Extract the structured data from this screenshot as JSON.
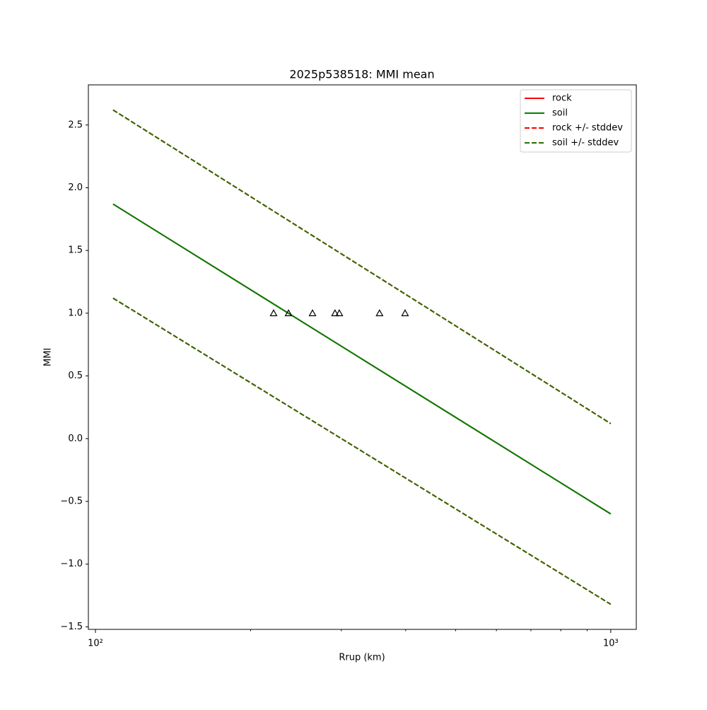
{
  "chart_data": {
    "type": "line",
    "title": "2025p538518: MMI mean",
    "x_label": "Rrup (km)",
    "y_label": "MMI",
    "x_scale": "log",
    "x": [
      108.2,
      1000
    ],
    "series": [
      {
        "name": "rock",
        "color": "#ff0000",
        "style": "solid",
        "values": [
          1.87,
          -0.6
        ]
      },
      {
        "name": "soil",
        "color": "#008000",
        "style": "solid",
        "values": [
          1.87,
          -0.6
        ]
      },
      {
        "name": "rock +/- stddev",
        "color": "#ff0000",
        "style": "dashed",
        "upper": [
          2.62,
          0.12
        ],
        "lower": [
          1.12,
          -1.32
        ]
      },
      {
        "name": "soil +/- stddev",
        "color": "#2e6b00",
        "style": "dashed",
        "upper": [
          2.62,
          0.12
        ],
        "lower": [
          1.12,
          -1.32
        ]
      }
    ],
    "markers": {
      "color": "#000000",
      "x": [
        221.7,
        237,
        263.8,
        291.7,
        297.4,
        355.9,
        398.9
      ],
      "values": [
        1,
        1,
        1,
        1,
        1,
        1,
        1
      ]
    },
    "xlim": [
      96.9,
      1121
    ],
    "ylim": [
      -1.52,
      2.82
    ],
    "xticks": [
      {
        "value": 100,
        "label": "10²"
      },
      {
        "value": 1000,
        "label": "10³"
      }
    ],
    "xminorticks": [
      200,
      300,
      400,
      500,
      600,
      700,
      800,
      900
    ],
    "yticks": [
      {
        "value": -1.5,
        "label": "−1.5"
      },
      {
        "value": -1,
        "label": "−1.0"
      },
      {
        "value": -0.5,
        "label": "−0.5"
      },
      {
        "value": 0,
        "label": "0.0"
      },
      {
        "value": 0.5,
        "label": "0.5"
      },
      {
        "value": 1,
        "label": "1.0"
      },
      {
        "value": 1.5,
        "label": "1.5"
      },
      {
        "value": 2,
        "label": "2.0"
      },
      {
        "value": 2.5,
        "label": "2.5"
      }
    ],
    "legend": "upper right",
    "grid": false
  }
}
